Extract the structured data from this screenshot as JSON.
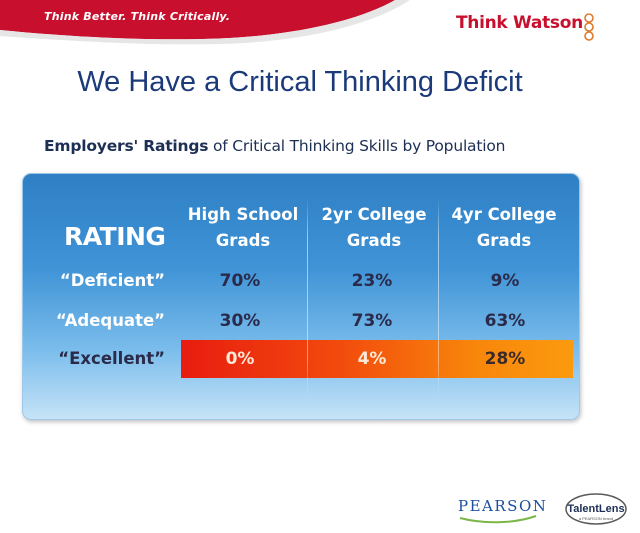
{
  "header": {
    "tagline": "Think Better. Think Critically.",
    "brand": "Think Watson"
  },
  "slide": {
    "title": "We Have a Critical Thinking Deficit",
    "subtitle_bold": "Employers' Ratings",
    "subtitle_rest": " of Critical Thinking Skills by Population"
  },
  "table": {
    "rating_label": "RATING",
    "columns": [
      {
        "line1": "High School",
        "line2": "Grads"
      },
      {
        "line1": "2yr College",
        "line2": "Grads"
      },
      {
        "line1": "4yr College",
        "line2": "Grads"
      }
    ],
    "rows": [
      {
        "label": "“Deficient”",
        "values": [
          "70%",
          "23%",
          "9%"
        ]
      },
      {
        "label": "“Adequate”",
        "values": [
          "30%",
          "73%",
          "63%"
        ]
      },
      {
        "label": "“Excellent”",
        "values": [
          "0%",
          "4%",
          "28%"
        ]
      }
    ]
  },
  "footer": {
    "pearson": "PEARSON",
    "talentlens": "TalentLens",
    "talentlens_sub": "a PEARSON brand"
  },
  "colors": {
    "title_blue": "#1b3a7a",
    "brand_red": "#c8102e",
    "panel_blue": "#3f93d6",
    "excellent_start": "#e81c10",
    "excellent_end": "#fb9a0e"
  }
}
